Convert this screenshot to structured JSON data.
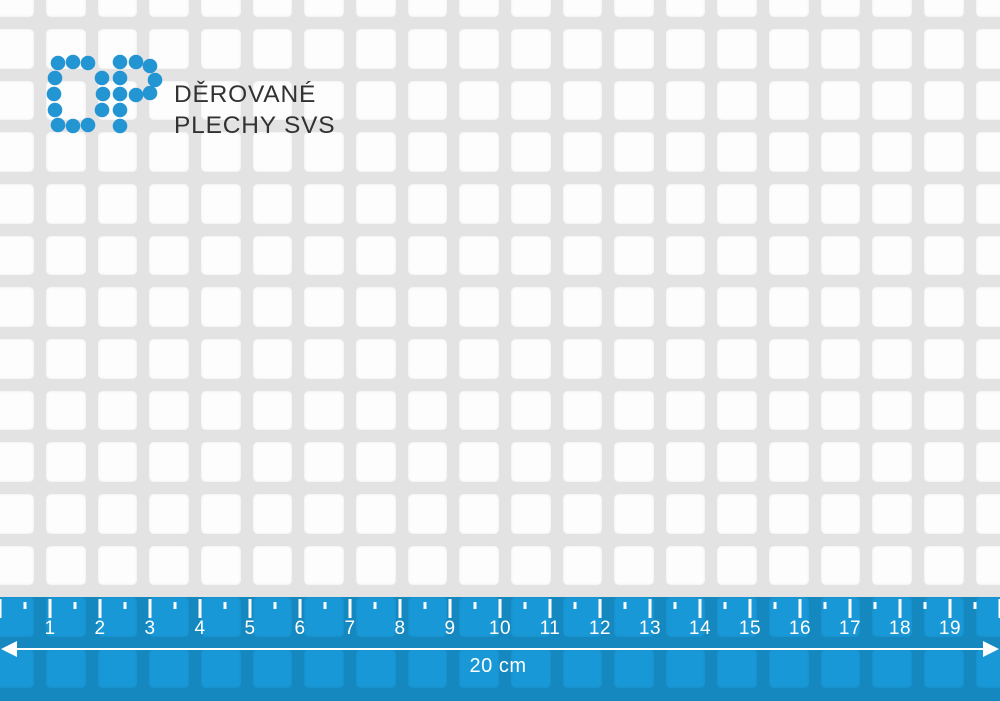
{
  "logo": {
    "line1": "DĚROVANÉ",
    "line2": "PLECHY SVS",
    "icon": "dp-dot-matrix-logo"
  },
  "ruler": {
    "labels": [
      "1",
      "2",
      "3",
      "4",
      "5",
      "6",
      "7",
      "8",
      "9",
      "10",
      "11",
      "12",
      "13",
      "14",
      "15",
      "16",
      "17",
      "18",
      "19"
    ],
    "total_label": "20 cm"
  },
  "colors": {
    "brand_blue": "#2395d3",
    "ruler_blue": "#1899d8",
    "text_dark": "#323232",
    "sheet_gray": "#e3e3e3",
    "hole_white": "#fdfdfd"
  }
}
